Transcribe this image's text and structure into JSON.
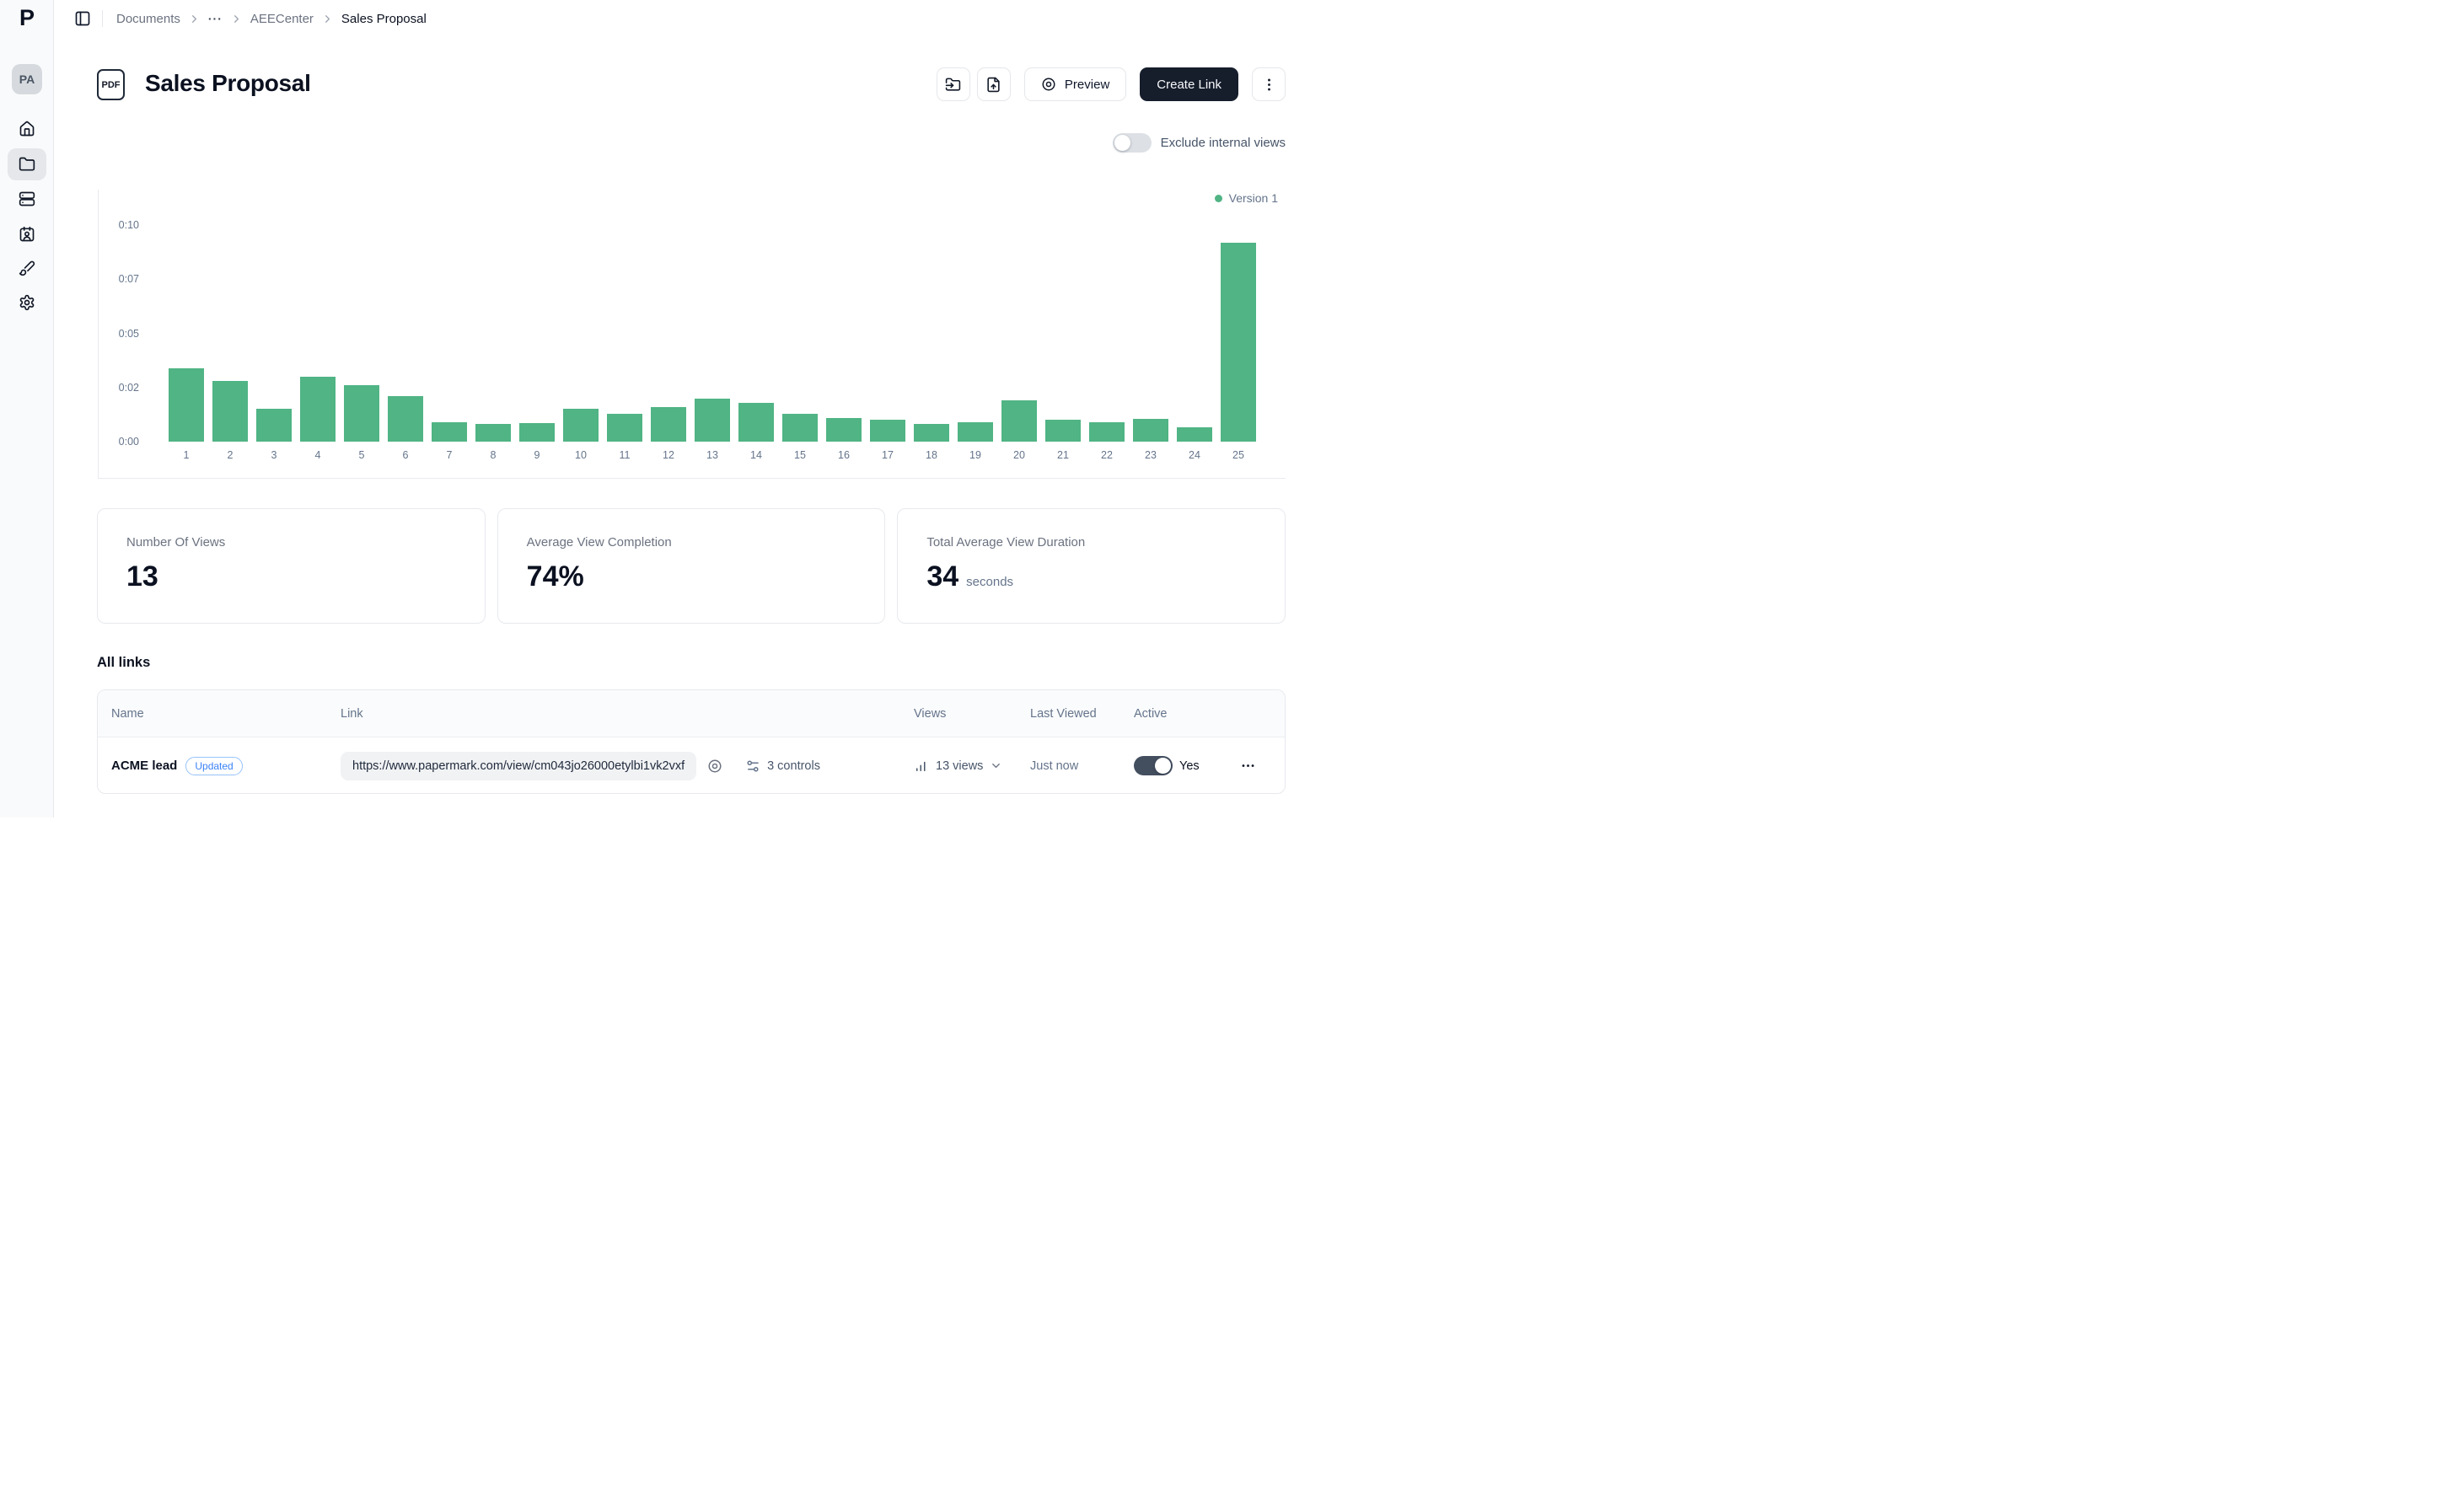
{
  "app": {
    "logo": "P",
    "avatar": "PA"
  },
  "sidebar": {
    "items": [
      {
        "id": "home",
        "icon": "home-icon",
        "active": false
      },
      {
        "id": "documents",
        "icon": "folder-icon",
        "active": true
      },
      {
        "id": "datarooms",
        "icon": "server-icon",
        "active": false
      },
      {
        "id": "visitors",
        "icon": "contact-icon",
        "active": false
      },
      {
        "id": "branding",
        "icon": "paintbrush-icon",
        "active": false
      },
      {
        "id": "settings",
        "icon": "gear-icon",
        "active": false
      }
    ]
  },
  "breadcrumb": {
    "items": [
      "Documents",
      "···",
      "AEECenter",
      "Sales Proposal"
    ]
  },
  "header": {
    "doc_type": "PDF",
    "title": "Sales Proposal",
    "preview_label": "Preview",
    "create_link_label": "Create Link"
  },
  "controls": {
    "exclude_internal_views": {
      "label": "Exclude internal views",
      "on": false
    }
  },
  "chart_data": {
    "type": "bar",
    "title": "",
    "xlabel": "",
    "ylabel": "",
    "unit": "seconds",
    "x": [
      1,
      2,
      3,
      4,
      5,
      6,
      7,
      8,
      9,
      10,
      11,
      12,
      13,
      14,
      15,
      16,
      17,
      18,
      19,
      20,
      21,
      22,
      23,
      24,
      25
    ],
    "series": [
      {
        "name": "Version 1",
        "color": "#50b484",
        "values": [
          3.4,
          2.8,
          1.5,
          3.0,
          2.6,
          2.1,
          0.9,
          0.8,
          0.85,
          1.5,
          1.3,
          1.6,
          2.0,
          1.8,
          1.3,
          1.1,
          1.0,
          0.8,
          0.9,
          1.9,
          1.0,
          0.9,
          1.05,
          0.65,
          9.2
        ]
      }
    ],
    "ylim": [
      0,
      10
    ],
    "y_ticks": [
      {
        "value": 0,
        "label": "0:00"
      },
      {
        "value": 2.5,
        "label": "0:02"
      },
      {
        "value": 5,
        "label": "0:05"
      },
      {
        "value": 7.5,
        "label": "0:07"
      },
      {
        "value": 10,
        "label": "0:10"
      }
    ],
    "grid": false,
    "legend_position": "top-right"
  },
  "stats": [
    {
      "label": "Number Of Views",
      "value": "13"
    },
    {
      "label": "Average View Completion",
      "value": "74%"
    },
    {
      "label": "Total Average View Duration",
      "value": "34",
      "suffix": "seconds"
    }
  ],
  "links_section": {
    "title": "All links",
    "columns": [
      "Name",
      "Link",
      "Views",
      "Last Viewed",
      "Active"
    ],
    "rows": [
      {
        "name": "ACME lead",
        "badge": "Updated",
        "url": "https://www.papermark.com/view/cm043jo26000etylbi1vk2vxf",
        "controls_label": "3 controls",
        "views_label": "13 views",
        "last_viewed": "Just now",
        "active_label": "Yes",
        "active_on": true
      }
    ]
  },
  "colors": {
    "accent_green": "#50b484",
    "primary_button": "#161d2b",
    "badge_blue": "#3b82f6",
    "toggle_on": "#434e5f"
  }
}
